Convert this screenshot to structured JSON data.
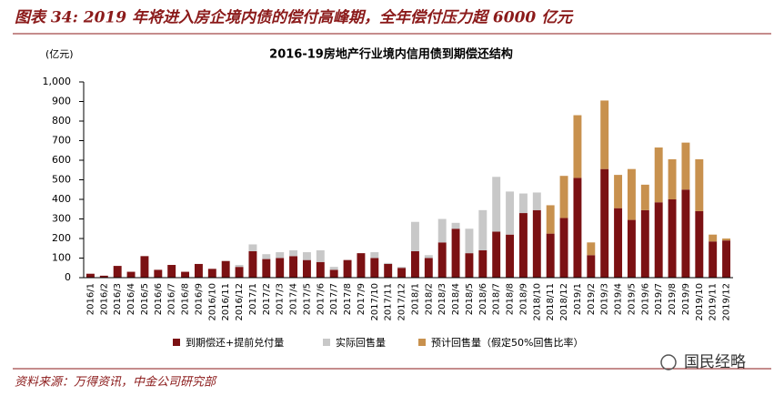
{
  "header": {
    "title": "图表 34: 2019 年将进入房企境内债的偿付高峰期，全年偿付压力超 6000 亿元"
  },
  "chart_data": {
    "type": "stacked_bar",
    "title": "2016-19房地产行业境内信用债到期偿还结构",
    "y_axis_label": "(亿元)",
    "categories": [
      "2016/1",
      "2016/2",
      "2016/3",
      "2016/4",
      "2016/5",
      "2016/6",
      "2016/7",
      "2016/8",
      "2016/9",
      "2016/10",
      "2016/11",
      "2016/12",
      "2017/1",
      "2017/2",
      "2017/3",
      "2017/4",
      "2017/5",
      "2017/6",
      "2017/7",
      "2017/8",
      "2017/9",
      "2017/10",
      "2017/11",
      "2017/12",
      "2018/1",
      "2018/2",
      "2018/3",
      "2018/4",
      "2018/5",
      "2018/6",
      "2018/7",
      "2018/8",
      "2018/9",
      "2018/10",
      "2018/11",
      "2018/12",
      "2019/1",
      "2019/2",
      "2019/3",
      "2019/4",
      "2019/5",
      "2019/6",
      "2019/7",
      "2019/8",
      "2019/9",
      "2019/10",
      "2019/11",
      "2019/12"
    ],
    "series": [
      {
        "name": "到期偿还+提前兑付量",
        "color": "#7b1113",
        "values": [
          20,
          10,
          60,
          30,
          110,
          40,
          65,
          30,
          70,
          45,
          85,
          55,
          135,
          95,
          100,
          110,
          90,
          80,
          40,
          90,
          125,
          100,
          70,
          50,
          135,
          100,
          180,
          250,
          125,
          140,
          235,
          220,
          330,
          345,
          225,
          305,
          510,
          115,
          555,
          355,
          295,
          345,
          385,
          400,
          450,
          340,
          185,
          190
        ]
      },
      {
        "name": "实际回售量",
        "color": "#c8c8c8",
        "values": [
          0,
          0,
          0,
          0,
          0,
          0,
          0,
          0,
          0,
          0,
          0,
          10,
          35,
          25,
          30,
          30,
          40,
          60,
          15,
          0,
          0,
          30,
          5,
          5,
          150,
          15,
          120,
          30,
          125,
          205,
          280,
          220,
          100,
          90,
          0,
          0,
          0,
          0,
          0,
          0,
          0,
          0,
          0,
          0,
          0,
          0,
          0,
          0
        ]
      },
      {
        "name": "预计回售量（假定50%回售比率）",
        "color": "#c8914e",
        "values": [
          0,
          0,
          0,
          0,
          0,
          0,
          0,
          0,
          0,
          0,
          0,
          0,
          0,
          0,
          0,
          0,
          0,
          0,
          0,
          0,
          0,
          0,
          0,
          0,
          0,
          0,
          0,
          0,
          0,
          0,
          0,
          0,
          0,
          0,
          145,
          215,
          320,
          65,
          350,
          170,
          260,
          130,
          280,
          205,
          240,
          265,
          35,
          10
        ]
      }
    ],
    "ylim": [
      0,
      1000
    ],
    "yticks": [
      0,
      100,
      200,
      300,
      400,
      500,
      600,
      700,
      800,
      900,
      {
        "value": 1000,
        "label": "1,000"
      }
    ],
    "legend": "bottom"
  },
  "footer": {
    "source": "资料来源：万得资讯，中金公司研究部",
    "watermark": "国民经略"
  }
}
